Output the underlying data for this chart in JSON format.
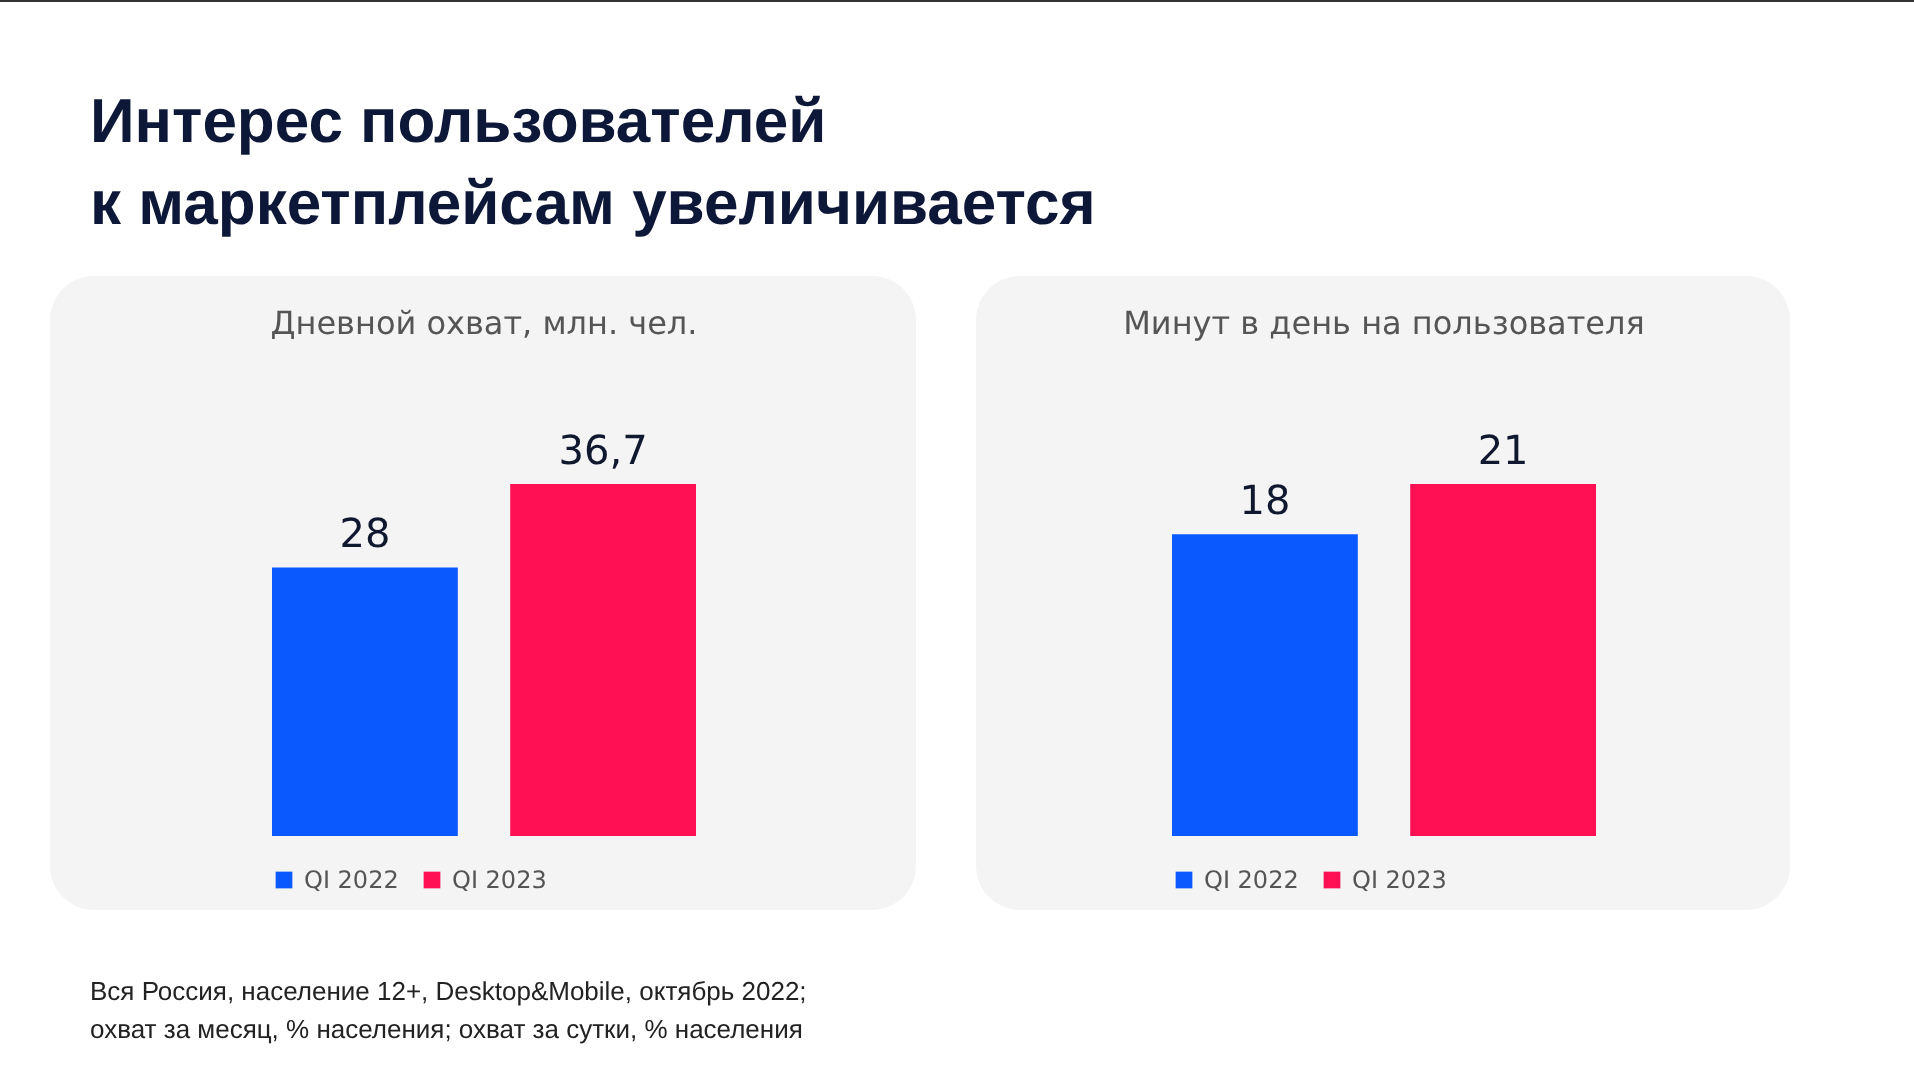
{
  "chart_data": [
    {
      "type": "other",
      "title": "Интерес пользователей\nк маркетплейсам увеличивается",
      "annotations": [
        "Вся Россия, население 12+, Desktop&Mobile, октябрь 2022;\nохват за месяц, % населения; охват за сутки, % населения"
      ]
    },
    {
      "type": "bar",
      "title": "Дневной охват, млн. чел.",
      "categories": [
        null
      ],
      "tick_labels": false,
      "legend": "bottom",
      "series": [
        {
          "name": "QI 2022",
          "color": "#0a59ff",
          "values": [
            28
          ],
          "value_labels": [
            "28"
          ]
        },
        {
          "name": "QI 2023",
          "color": "#ff1055",
          "values": [
            36.7
          ],
          "value_labels": [
            "36,7"
          ]
        }
      ]
    },
    {
      "type": "bar",
      "title": "Минут в день на пользователя",
      "categories": [
        null
      ],
      "tick_labels": false,
      "legend": "bottom",
      "series": [
        {
          "name": "QI 2022",
          "color": "#0a59ff",
          "values": [
            18
          ],
          "value_labels": [
            "18"
          ]
        },
        {
          "name": "QI 2023",
          "color": "#ff1055",
          "values": [
            21
          ],
          "value_labels": [
            "21"
          ]
        }
      ]
    }
  ]
}
